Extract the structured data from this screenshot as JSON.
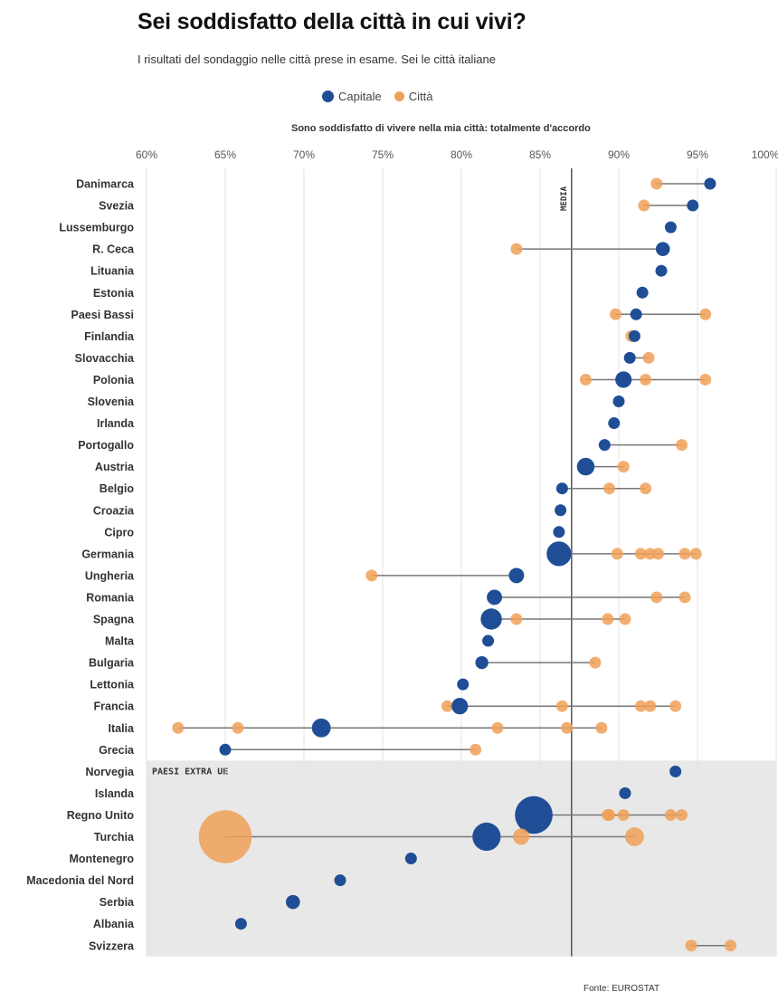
{
  "header": {
    "title": "Sei soddisfatto della città in cui vivi?",
    "subtitle": "I risultati del sondaggio nelle città prese in esame. Sei le città italiane"
  },
  "legend": {
    "capital_label": "Capitale",
    "city_label": "Città"
  },
  "colors": {
    "capital": "#1f4e96",
    "city": "#f0a058",
    "grid": "#e3e3e3",
    "median_line": "#555555",
    "extra_ue_band": "#e8e8e8"
  },
  "footer": {
    "source": "Fonte: EUROSTAT"
  },
  "chart_data": {
    "type": "scatter",
    "subtype": "dot-range",
    "xlabel": "Sono soddisfatto di vivere nella mia città: totalmente d'accordo",
    "xlim": [
      60,
      100
    ],
    "xticks": [
      "60%",
      "65%",
      "70%",
      "75%",
      "80%",
      "85%",
      "90%",
      "95%",
      "100%"
    ],
    "xtick_values": [
      60,
      65,
      70,
      75,
      80,
      85,
      90,
      95,
      100
    ],
    "reference_line": {
      "label": "MEDIA",
      "value": 87
    },
    "group_label": "PAESI EXTRA UE",
    "series_names": [
      "Capitale",
      "Città"
    ],
    "rows": [
      {
        "country": "Danimarca",
        "capital": 95.8,
        "cities": [
          92.4
        ],
        "size": 1
      },
      {
        "country": "Svezia",
        "capital": 94.7,
        "cities": [
          91.6
        ],
        "size": 1
      },
      {
        "country": "Lussemburgo",
        "capital": 93.3,
        "cities": [],
        "size": 1
      },
      {
        "country": "R. Ceca",
        "capital": 92.8,
        "cities": [
          83.5
        ],
        "size": 1.2
      },
      {
        "country": "Lituania",
        "capital": 92.7,
        "cities": [],
        "size": 1
      },
      {
        "country": "Estonia",
        "capital": 91.5,
        "cities": [],
        "size": 1
      },
      {
        "country": "Paesi Bassi",
        "capital": 91.1,
        "cities": [
          89.8,
          95.5
        ],
        "size": 1
      },
      {
        "country": "Finlandia",
        "capital": 91.0,
        "cities": [
          90.8
        ],
        "size": 1
      },
      {
        "country": "Slovacchia",
        "capital": 90.7,
        "cities": [
          91.9
        ],
        "size": 1
      },
      {
        "country": "Polonia",
        "capital": 90.3,
        "cities": [
          87.9,
          91.7,
          95.5
        ],
        "size": 1.4
      },
      {
        "country": "Slovenia",
        "capital": 90.0,
        "cities": [],
        "size": 1
      },
      {
        "country": "Irlanda",
        "capital": 89.7,
        "cities": [],
        "size": 1
      },
      {
        "country": "Portogallo",
        "capital": 89.1,
        "cities": [
          94.0
        ],
        "size": 1
      },
      {
        "country": "Austria",
        "capital": 87.9,
        "cities": [
          90.3
        ],
        "size": 1.5
      },
      {
        "country": "Belgio",
        "capital": 86.4,
        "cities": [
          89.4,
          91.7
        ],
        "size": 1
      },
      {
        "country": "Croazia",
        "capital": 86.3,
        "cities": [],
        "size": 1
      },
      {
        "country": "Cipro",
        "capital": 86.2,
        "cities": [],
        "size": 1
      },
      {
        "country": "Germania",
        "capital": 86.2,
        "cities": [
          89.9,
          91.4,
          92.0,
          92.5,
          94.2,
          94.9
        ],
        "size": 2.1
      },
      {
        "country": "Ungheria",
        "capital": 83.5,
        "cities": [
          74.3
        ],
        "size": 1.3
      },
      {
        "country": "Romania",
        "capital": 82.1,
        "cities": [
          92.4,
          94.2
        ],
        "size": 1.3
      },
      {
        "country": "Spagna",
        "capital": 81.9,
        "cities": [
          83.5,
          89.3,
          90.4
        ],
        "size": 1.8
      },
      {
        "country": "Malta",
        "capital": 81.7,
        "cities": [],
        "size": 1
      },
      {
        "country": "Bulgaria",
        "capital": 81.3,
        "cities": [
          88.5
        ],
        "size": 1.1
      },
      {
        "country": "Lettonia",
        "capital": 80.1,
        "cities": [],
        "size": 1
      },
      {
        "country": "Francia",
        "capital": 79.9,
        "cities": [
          79.1,
          86.4,
          91.4,
          92.0,
          93.6
        ],
        "size": 1.4
      },
      {
        "country": "Italia",
        "capital": 71.1,
        "cities": [
          62.0,
          65.8,
          82.3,
          86.7,
          88.9
        ],
        "size": 1.6
      },
      {
        "country": "Grecia",
        "capital": 65.0,
        "cities": [
          80.9
        ],
        "size": 1
      },
      {
        "country": "Norvegia",
        "capital": 93.6,
        "cities": [],
        "size": 1,
        "extra_ue": true
      },
      {
        "country": "Islanda",
        "capital": 90.4,
        "cities": [],
        "size": 1,
        "extra_ue": true
      },
      {
        "country": "Regno Unito",
        "capital": 84.6,
        "cities": [
          89.4,
          89.3,
          90.3,
          93.3,
          94.0
        ],
        "size": 3.2,
        "extra_ue": true
      },
      {
        "country": "Turchia",
        "capital": 81.6,
        "cities": [
          65.0,
          83.8,
          91.0
        ],
        "size": 2.4,
        "city_sizes": [
          4.5,
          1.4,
          1.6
        ],
        "extra_ue": true
      },
      {
        "country": "Montenegro",
        "capital": 76.8,
        "cities": [],
        "size": 1,
        "extra_ue": true
      },
      {
        "country": "Macedonia del Nord",
        "capital": 72.3,
        "cities": [],
        "size": 1,
        "extra_ue": true
      },
      {
        "country": "Serbia",
        "capital": 69.3,
        "cities": [],
        "size": 1.2,
        "extra_ue": true
      },
      {
        "country": "Albania",
        "capital": 66.0,
        "cities": [],
        "size": 1,
        "extra_ue": true
      },
      {
        "country": "Svizzera",
        "capital": null,
        "cities": [
          94.6,
          97.1
        ],
        "size": 1,
        "extra_ue": true
      }
    ]
  }
}
